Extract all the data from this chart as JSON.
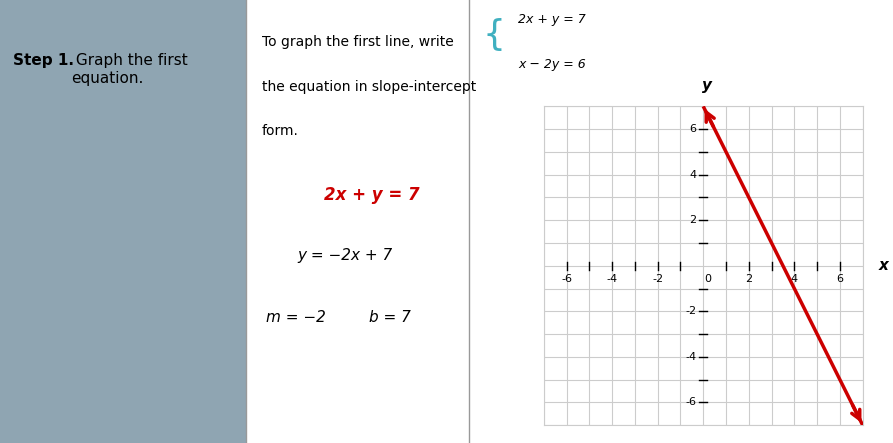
{
  "left_panel_color": "#8FA5B2",
  "white_color": "#FFFFFF",
  "step_bold": "Step 1.",
  "step_regular": " Graph the first\nequation.",
  "desc_line1": "To graph the first line, write",
  "desc_line2": "the equation in slope-intercept",
  "desc_line3": "form.",
  "eq_highlighted": "2x + y = 7",
  "eq_highlighted_color": "#CC0000",
  "eq_slope_intercept": "y = −2x + 7",
  "eq_m": "m = −2",
  "eq_b": "b = 7",
  "system_eq1": "2x + y = 7",
  "system_eq2": "x − 2y = 6",
  "system_brace_color": "#40B0C0",
  "line_color": "#CC0000",
  "slope": -2,
  "intercept": 7,
  "xmin": -7,
  "xmax": 7,
  "ymin": -7,
  "ymax": 7,
  "grid_color": "#CCCCCC",
  "fig_width": 8.93,
  "fig_height": 4.43,
  "dpi": 100
}
